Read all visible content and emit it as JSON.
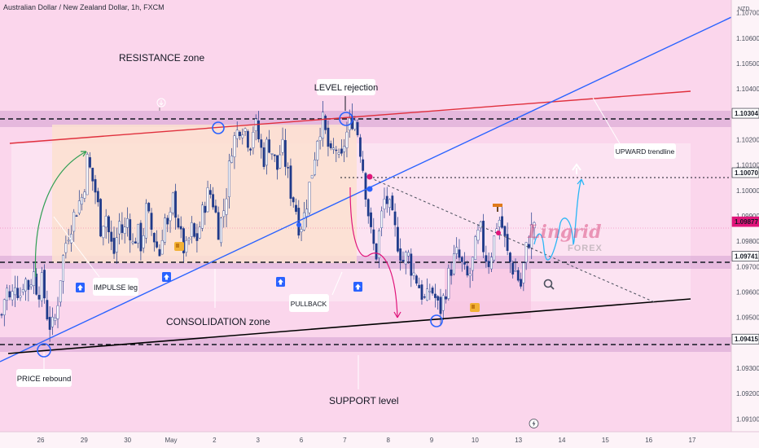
{
  "header": {
    "symbol_title": "Australian Dollar / New Zealand Dollar, 1h, FXCM",
    "currency": "NZD"
  },
  "chart_data": {
    "type": "candlestick",
    "title": "Australian Dollar / New Zealand Dollar, 1h, FXCM",
    "y_axis": {
      "currency": "NZD",
      "ticks": [
        "1.10700",
        "1.10600",
        "1.10500",
        "1.10400",
        "1.10200",
        "1.10100",
        "1.10000",
        "1.09900",
        "1.09800",
        "1.09700",
        "1.09600",
        "1.09500",
        "1.09300",
        "1.09200",
        "1.09100"
      ],
      "ylim": [
        1.0905,
        1.1075
      ]
    },
    "x_axis": {
      "ticks": [
        "26",
        "29",
        "30",
        "May",
        "2",
        "3",
        "6",
        "7",
        "8",
        "9",
        "10",
        "13",
        "14",
        "15",
        "16",
        "17"
      ]
    },
    "price_levels": [
      {
        "label": "1.10304",
        "value": 1.10304,
        "style": "dashed"
      },
      {
        "label": "1.10070",
        "value": 1.1007,
        "style": "dotted"
      },
      {
        "label": "1.09877",
        "value": 1.09877,
        "style": "current"
      },
      {
        "label": "1.09741",
        "value": 1.09741,
        "style": "dashed"
      },
      {
        "label": "1.09415",
        "value": 1.09415,
        "style": "dashed"
      }
    ],
    "zones": [
      {
        "label": "RESISTANCE zone",
        "from": 1.1026,
        "to": 1.1034
      },
      {
        "label": "CONSOLIDATION zone",
        "from": 1.0971,
        "to": 1.0977
      },
      {
        "label": "SUPPORT level",
        "from": 1.0938,
        "to": 1.0944
      }
    ],
    "annotations": [
      "RESISTANCE zone",
      "LEVEL rejection",
      "UPWARD trendline",
      "IMPULSE leg",
      "PULLBACK",
      "CONSOLIDATION zone",
      "PRICE rebound",
      "SUPPORT level"
    ],
    "price_path": [
      [
        1.0951,
        1.0962,
        1.0955,
        1.0965,
        1.0958,
        1.0966,
        1.0962,
        1.0968,
        1.096,
        1.0964,
        1.0952,
        1.0945,
        1.095,
        1.0966,
        1.0978,
        1.0985
      ],
      [
        1.099,
        1.0995,
        1.0998,
        1.1012,
        1.1005,
        1.0998,
        1.0985,
        1.0992,
        1.098,
        1.0975,
        1.0988,
        1.0982,
        1.099,
        1.0978,
        1.0984
      ],
      [
        1.0978,
        1.0992,
        1.0986,
        1.098,
        1.0975,
        1.099,
        1.0983,
        1.0997,
        1.0989,
        1.0978,
        1.0976,
        1.0985,
        1.0979,
        1.0987,
        1.0995
      ],
      [
        1.1,
        1.0995,
        1.0985,
        1.099,
        1.1002,
        1.1018,
        1.1022,
        1.1027,
        1.1024,
        1.1018
      ],
      [
        1.1027,
        1.102,
        1.1012,
        1.102,
        1.1015,
        1.1008,
        1.1018,
        1.101,
        1.1,
        1.0995,
        1.0985,
        1.099
      ],
      [
        1.1,
        1.101,
        1.1022,
        1.1028,
        1.102,
        1.1012,
        1.1018,
        1.1008,
        1.102,
        1.1025
      ],
      [
        1.103,
        1.1022,
        1.101,
        1.0995,
        1.098,
        1.0975,
        1.0988,
        1.0998,
        1.0992,
        1.0985,
        1.0978,
        1.0972,
        1.0975,
        1.0968
      ],
      [
        1.0965,
        1.096,
        1.0955,
        1.0962,
        1.0958,
        1.0952,
        1.0958,
        1.0966,
        1.0972,
        1.0975,
        1.097,
        1.0965,
        1.0968
      ],
      [
        1.0978,
        1.0985,
        1.0975,
        1.0972,
        1.098,
        1.099,
        1.0985,
        1.0975,
        1.097,
        1.0968,
        1.0962,
        1.0975,
        1.0982,
        1.0988
      ]
    ],
    "projection": {
      "from": 1.0978,
      "to": 1.1007
    }
  },
  "labels": {
    "resistance_zone": "RESISTANCE zone",
    "level_rejection": "LEVEL rejection",
    "upward_trendline": "UPWARD trendline",
    "impulse_leg": "IMPULSE leg",
    "pullback": "PULLBACK",
    "consolidation_zone": "CONSOLIDATION zone",
    "price_rebound": "PRICE rebound",
    "support_level": "SUPPORT level"
  },
  "logo": {
    "name": "Lingrid",
    "tagline": "FOREX"
  },
  "colors": {
    "background": "#fbd6ec",
    "zone_band": "#d9a7d6",
    "consolidation_box": "#fbe0d8",
    "bull": "#ffffff",
    "bear": "#1e3a8a",
    "resistance_line": "#e0303d",
    "trendline": "#2962ff",
    "support_line": "#000000",
    "projection": "#29b6f6",
    "pullback_arrow": "#e0157a",
    "impulse_arrow": "#2e9e52",
    "marker_blue": "#2962ff",
    "marker_pink": "#e0157a"
  }
}
